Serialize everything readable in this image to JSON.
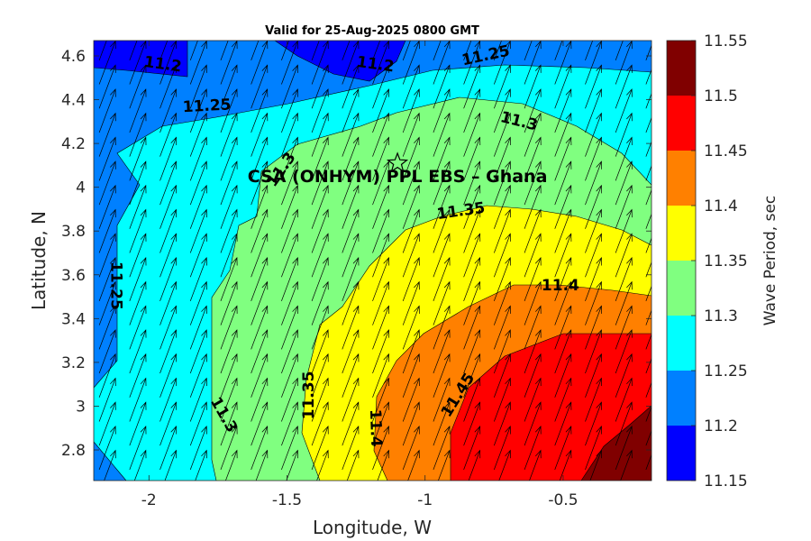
{
  "chart_data": {
    "type": "filled-contour",
    "title": "Valid for 25-Aug-2025 0800 GMT",
    "xlabel": "Longitude, W",
    "ylabel": "Latitude, N",
    "xlim": [
      -2.2,
      -0.18
    ],
    "ylim": [
      2.66,
      4.67
    ],
    "xticks": [
      -2,
      -1.5,
      -1,
      -0.5
    ],
    "xtick_labels": [
      "-2",
      "-1.5",
      "-1",
      "-0.5"
    ],
    "yticks": [
      2.8,
      3.0,
      3.2,
      3.4,
      3.6,
      3.8,
      4.0,
      4.2,
      4.4,
      4.6
    ],
    "ytick_labels": [
      "2.8",
      "3",
      "3.2",
      "3.4",
      "3.6",
      "3.8",
      "4",
      "4.2",
      "4.4",
      "4.6"
    ],
    "colorbar": {
      "label": "Wave Period, sec",
      "levels": [
        11.15,
        11.2,
        11.25,
        11.3,
        11.35,
        11.4,
        11.45,
        11.5,
        11.55
      ],
      "level_labels": [
        "11.15",
        "11.2",
        "11.25",
        "11.3",
        "11.35",
        "11.4",
        "11.45",
        "11.5",
        "11.55"
      ],
      "colors": [
        "#0000ff",
        "#0080ff",
        "#00ffff",
        "#80ff80",
        "#ffff00",
        "#ff8000",
        "#ff0000",
        "#800000"
      ]
    },
    "contour_labels": [
      {
        "text": "11.2",
        "x": -1.95,
        "y": 4.56,
        "angle": 8
      },
      {
        "text": "11.2",
        "x": -1.18,
        "y": 4.56,
        "angle": 8
      },
      {
        "text": "11.25",
        "x": -0.78,
        "y": 4.6,
        "angle": -12
      },
      {
        "text": "11.25",
        "x": -1.79,
        "y": 4.37,
        "angle": -3
      },
      {
        "text": "11.3",
        "x": -0.66,
        "y": 4.3,
        "angle": 14
      },
      {
        "text": "11.3",
        "x": -1.52,
        "y": 4.08,
        "angle": -55
      },
      {
        "text": "11.35",
        "x": -0.87,
        "y": 3.89,
        "angle": -8
      },
      {
        "text": "11.25",
        "x": -2.12,
        "y": 3.55,
        "angle": 90
      },
      {
        "text": "11.4",
        "x": -0.51,
        "y": 3.55,
        "angle": 0
      },
      {
        "text": "11.3",
        "x": -1.73,
        "y": 2.96,
        "angle": 60
      },
      {
        "text": "11.35",
        "x": -1.42,
        "y": 3.05,
        "angle": -90
      },
      {
        "text": "11.4",
        "x": -1.18,
        "y": 2.9,
        "angle": 88
      },
      {
        "text": "11.45",
        "x": -0.88,
        "y": 3.05,
        "angle": -58
      }
    ],
    "site": {
      "name": "CSA (ONHYM) PPL EBS  – Ghana",
      "marker": "star",
      "x": -1.1,
      "y": 4.11
    },
    "vectors": {
      "type": "quiver",
      "direction": "toward north-northeast",
      "grid_spacing_deg": 0.11
    },
    "grid": false
  }
}
